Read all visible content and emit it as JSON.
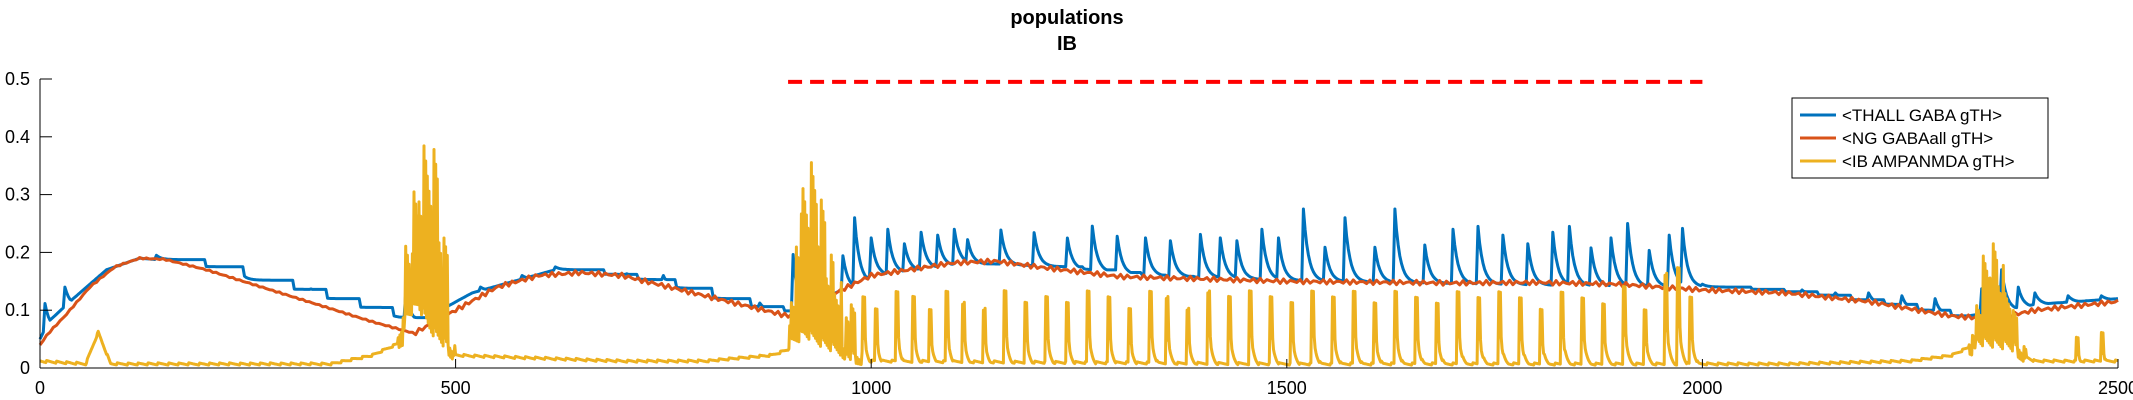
{
  "chart_data": {
    "type": "line",
    "title": "populations",
    "subtitle": "IB",
    "xlabel": "",
    "ylabel": "",
    "xlim": [
      0,
      2500
    ],
    "ylim": [
      0,
      0.5
    ],
    "xticks": [
      0,
      500,
      1000,
      1500,
      2000,
      2500
    ],
    "xtick_labels": [
      "0",
      "500",
      "1000",
      "1500",
      "2000",
      "2500"
    ],
    "yticks": [
      0,
      0.1,
      0.2,
      0.3,
      0.4,
      0.5
    ],
    "ytick_labels": [
      "0",
      "0.1",
      "0.2",
      "0.3",
      "0.4",
      "0.5"
    ],
    "grid": false,
    "legend_position": "top-right",
    "stimulus_bar": {
      "x": [
        900,
        2000
      ],
      "y": 0.495,
      "color": "#ff0000",
      "style": "dashed"
    },
    "series": [
      {
        "name": "<THALL GABA gTH>",
        "color": "#0072BD",
        "baseline": [
          [
            0,
            0.05
          ],
          [
            10,
            0.08
          ],
          [
            40,
            0.12
          ],
          [
            80,
            0.17
          ],
          [
            120,
            0.19
          ],
          [
            160,
            0.185
          ],
          [
            250,
            0.15
          ],
          [
            350,
            0.11
          ],
          [
            450,
            0.075
          ],
          [
            520,
            0.13
          ],
          [
            620,
            0.17
          ],
          [
            720,
            0.15
          ],
          [
            820,
            0.11
          ],
          [
            900,
            0.09
          ],
          [
            1000,
            0.16
          ],
          [
            1100,
            0.18
          ],
          [
            1200,
            0.175
          ],
          [
            1300,
            0.16
          ],
          [
            1500,
            0.15
          ],
          [
            1700,
            0.145
          ],
          [
            1900,
            0.14
          ],
          [
            2000,
            0.14
          ],
          [
            2100,
            0.13
          ],
          [
            2200,
            0.11
          ],
          [
            2300,
            0.085
          ],
          [
            2400,
            0.11
          ],
          [
            2500,
            0.12
          ]
        ],
        "spikes": [
          [
            5,
            0.12
          ],
          [
            30,
            0.14
          ],
          [
            140,
            0.195
          ],
          [
            185,
            0.18
          ],
          [
            245,
            0.16
          ],
          [
            285,
            0.15
          ],
          [
            325,
            0.14
          ],
          [
            365,
            0.12
          ],
          [
            415,
            0.105
          ],
          [
            440,
            0.13
          ],
          [
            530,
            0.14
          ],
          [
            580,
            0.16
          ],
          [
            620,
            0.175
          ],
          [
            660,
            0.17
          ],
          [
            705,
            0.165
          ],
          [
            750,
            0.16
          ],
          [
            795,
            0.14
          ],
          [
            835,
            0.12
          ],
          [
            865,
            0.115
          ],
          [
            905,
            0.215
          ],
          [
            935,
            0.19
          ],
          [
            965,
            0.205
          ],
          [
            980,
            0.26
          ],
          [
            1000,
            0.225
          ],
          [
            1020,
            0.24
          ],
          [
            1040,
            0.215
          ],
          [
            1060,
            0.235
          ],
          [
            1080,
            0.23
          ],
          [
            1100,
            0.24
          ],
          [
            1115,
            0.23
          ],
          [
            1155,
            0.25
          ],
          [
            1195,
            0.245
          ],
          [
            1235,
            0.235
          ],
          [
            1265,
            0.26
          ],
          [
            1295,
            0.24
          ],
          [
            1330,
            0.225
          ],
          [
            1360,
            0.22
          ],
          [
            1395,
            0.245
          ],
          [
            1420,
            0.225
          ],
          [
            1440,
            0.22
          ],
          [
            1470,
            0.24
          ],
          [
            1490,
            0.225
          ],
          [
            1520,
            0.275
          ],
          [
            1545,
            0.22
          ],
          [
            1570,
            0.26
          ],
          [
            1605,
            0.22
          ],
          [
            1630,
            0.275
          ],
          [
            1665,
            0.225
          ],
          [
            1700,
            0.24
          ],
          [
            1730,
            0.245
          ],
          [
            1760,
            0.23
          ],
          [
            1790,
            0.215
          ],
          [
            1820,
            0.235
          ],
          [
            1840,
            0.245
          ],
          [
            1865,
            0.22
          ],
          [
            1890,
            0.225
          ],
          [
            1910,
            0.25
          ],
          [
            1935,
            0.215
          ],
          [
            1960,
            0.23
          ],
          [
            1975,
            0.26
          ],
          [
            2000,
            0.145
          ],
          [
            2040,
            0.14
          ],
          [
            2080,
            0.135
          ],
          [
            2120,
            0.135
          ],
          [
            2160,
            0.13
          ],
          [
            2200,
            0.13
          ],
          [
            2240,
            0.125
          ],
          [
            2280,
            0.12
          ],
          [
            2335,
            0.145
          ],
          [
            2350,
            0.155
          ],
          [
            2360,
            0.17
          ],
          [
            2380,
            0.14
          ],
          [
            2400,
            0.13
          ],
          [
            2440,
            0.125
          ],
          [
            2480,
            0.125
          ]
        ]
      },
      {
        "name": "<NG GABAall gTH>",
        "color": "#D95319",
        "points": [
          [
            0,
            0.04
          ],
          [
            10,
            0.06
          ],
          [
            30,
            0.09
          ],
          [
            60,
            0.14
          ],
          [
            90,
            0.175
          ],
          [
            120,
            0.19
          ],
          [
            150,
            0.188
          ],
          [
            200,
            0.17
          ],
          [
            300,
            0.125
          ],
          [
            400,
            0.08
          ],
          [
            450,
            0.06
          ],
          [
            500,
            0.1
          ],
          [
            550,
            0.14
          ],
          [
            600,
            0.16
          ],
          [
            650,
            0.165
          ],
          [
            700,
            0.16
          ],
          [
            800,
            0.125
          ],
          [
            900,
            0.09
          ],
          [
            1000,
            0.16
          ],
          [
            1100,
            0.182
          ],
          [
            1150,
            0.185
          ],
          [
            1200,
            0.175
          ],
          [
            1300,
            0.158
          ],
          [
            1500,
            0.15
          ],
          [
            1700,
            0.147
          ],
          [
            1800,
            0.148
          ],
          [
            1900,
            0.145
          ],
          [
            2000,
            0.135
          ],
          [
            2100,
            0.13
          ],
          [
            2200,
            0.115
          ],
          [
            2300,
            0.09
          ],
          [
            2350,
            0.085
          ],
          [
            2400,
            0.1
          ],
          [
            2500,
            0.115
          ]
        ]
      },
      {
        "name": "<IB AMPANMDA gTH>",
        "color": "#EDB120",
        "baseline": [
          [
            0,
            0.01
          ],
          [
            55,
            0.005
          ],
          [
            70,
            0.06
          ],
          [
            85,
            0.005
          ],
          [
            200,
            0.005
          ],
          [
            350,
            0.005
          ],
          [
            400,
            0.02
          ],
          [
            430,
            0.04
          ],
          [
            440,
            0.08
          ],
          [
            455,
            0.1
          ],
          [
            470,
            0.06
          ],
          [
            490,
            0.03
          ],
          [
            500,
            0.02
          ],
          [
            600,
            0.015
          ],
          [
            700,
            0.01
          ],
          [
            800,
            0.01
          ],
          [
            880,
            0.02
          ],
          [
            900,
            0.03
          ],
          [
            920,
            0.05
          ],
          [
            980,
            0.01
          ],
          [
            1000,
            0.01
          ],
          [
            1500,
            0.005
          ],
          [
            2000,
            0.005
          ],
          [
            2100,
            0.005
          ],
          [
            2250,
            0.01
          ],
          [
            2300,
            0.02
          ],
          [
            2330,
            0.04
          ],
          [
            2370,
            0.03
          ],
          [
            2400,
            0.01
          ],
          [
            2500,
            0.01
          ]
        ],
        "bursts": [
          [
            445,
            0.24
          ],
          [
            452,
            0.32
          ],
          [
            460,
            0.38
          ],
          [
            466,
            0.4
          ],
          [
            470,
            0.3
          ],
          [
            474,
            0.39
          ],
          [
            478,
            0.28
          ],
          [
            485,
            0.23
          ],
          [
            905,
            0.12
          ],
          [
            915,
            0.28
          ],
          [
            922,
            0.35
          ],
          [
            930,
            0.37
          ],
          [
            940,
            0.3
          ],
          [
            950,
            0.2
          ],
          [
            960,
            0.15
          ],
          [
            975,
            0.11
          ],
          [
            2335,
            0.13
          ],
          [
            2342,
            0.2
          ],
          [
            2350,
            0.22
          ],
          [
            2358,
            0.18
          ],
          [
            2366,
            0.14
          ],
          [
            2374,
            0.1
          ]
        ],
        "spikes": [
          [
            990,
            0.12
          ],
          [
            1005,
            0.1
          ],
          [
            1030,
            0.13
          ],
          [
            1050,
            0.12
          ],
          [
            1070,
            0.1
          ],
          [
            1090,
            0.13
          ],
          [
            1110,
            0.11
          ],
          [
            1135,
            0.1
          ],
          [
            1160,
            0.13
          ],
          [
            1185,
            0.11
          ],
          [
            1210,
            0.12
          ],
          [
            1235,
            0.11
          ],
          [
            1260,
            0.13
          ],
          [
            1285,
            0.12
          ],
          [
            1310,
            0.1
          ],
          [
            1335,
            0.13
          ],
          [
            1355,
            0.12
          ],
          [
            1380,
            0.1
          ],
          [
            1405,
            0.13
          ],
          [
            1430,
            0.12
          ],
          [
            1455,
            0.13
          ],
          [
            1480,
            0.12
          ],
          [
            1505,
            0.11
          ],
          [
            1530,
            0.13
          ],
          [
            1555,
            0.12
          ],
          [
            1580,
            0.13
          ],
          [
            1605,
            0.11
          ],
          [
            1630,
            0.13
          ],
          [
            1655,
            0.12
          ],
          [
            1680,
            0.11
          ],
          [
            1705,
            0.13
          ],
          [
            1730,
            0.12
          ],
          [
            1755,
            0.13
          ],
          [
            1780,
            0.12
          ],
          [
            1805,
            0.1
          ],
          [
            1830,
            0.13
          ],
          [
            1855,
            0.12
          ],
          [
            1880,
            0.11
          ],
          [
            1905,
            0.14
          ],
          [
            1930,
            0.1
          ],
          [
            1955,
            0.16
          ],
          [
            1970,
            0.17
          ],
          [
            1985,
            0.12
          ],
          [
            2450,
            0.05
          ],
          [
            2480,
            0.06
          ]
        ]
      }
    ]
  }
}
